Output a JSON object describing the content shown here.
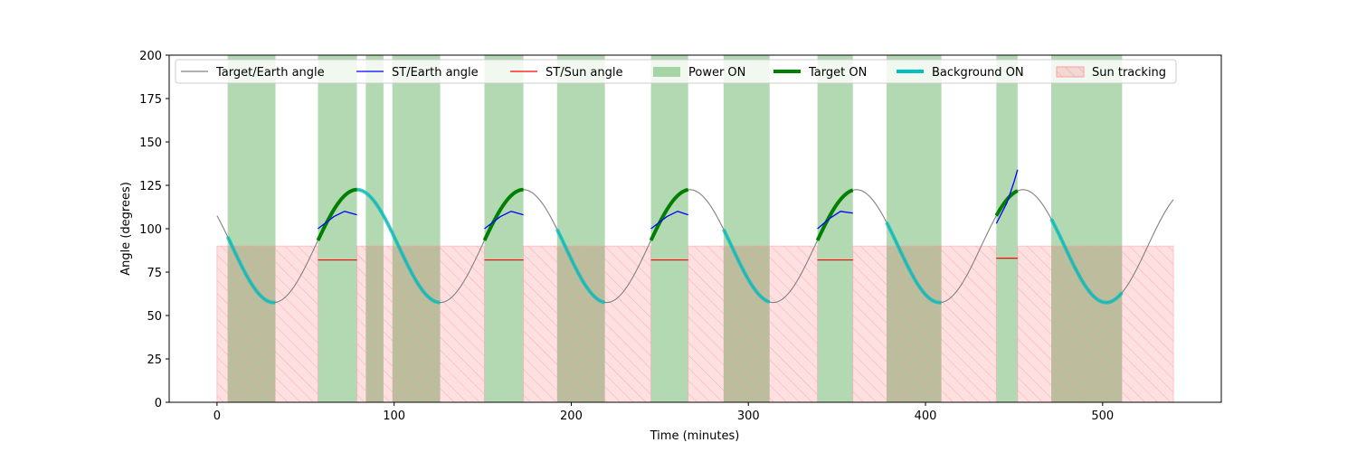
{
  "chart_data": {
    "type": "line",
    "xlabel": "Time (minutes)",
    "ylabel": "Angle (degrees)",
    "xlim": [
      -27,
      567
    ],
    "ylim": [
      0,
      200
    ],
    "xticks": [
      0,
      100,
      200,
      300,
      400,
      500
    ],
    "yticks": [
      0,
      25,
      50,
      75,
      100,
      125,
      150,
      175,
      200
    ],
    "grid": false,
    "legend_position": "top",
    "target_earth_curve": {
      "name": "Target/Earth angle",
      "color": "#808080",
      "x_range": [
        0,
        540
      ],
      "mean": 90,
      "amplitude": 32.5,
      "period_minutes": 94,
      "phase_peak_minute": 79
    },
    "power_on_intervals": [
      [
        6,
        33
      ],
      [
        57,
        79
      ],
      [
        84,
        94
      ],
      [
        99,
        126
      ],
      [
        151,
        173
      ],
      [
        192,
        219
      ],
      [
        245,
        266
      ],
      [
        286,
        312
      ],
      [
        339,
        359
      ],
      [
        378,
        409
      ],
      [
        440,
        452
      ],
      [
        471,
        511
      ]
    ],
    "sun_tracking_intervals": [
      [
        0,
        57
      ],
      [
        79,
        151
      ],
      [
        173,
        245
      ],
      [
        266,
        339
      ],
      [
        359,
        440
      ],
      [
        452,
        540
      ]
    ],
    "sun_tracking_level": 90,
    "target_on_intervals": [
      [
        57,
        79
      ],
      [
        151,
        173
      ],
      [
        245,
        266
      ],
      [
        339,
        359
      ],
      [
        440,
        452
      ]
    ],
    "background_on_intervals": [
      [
        6,
        33
      ],
      [
        79,
        99
      ],
      [
        99,
        126
      ],
      [
        192,
        219
      ],
      [
        286,
        312
      ],
      [
        378,
        409
      ],
      [
        471,
        511
      ]
    ],
    "st_earth_segments": [
      {
        "x": [
          57,
          66,
          72,
          79
        ],
        "y": [
          100,
          107,
          110,
          108
        ]
      },
      {
        "x": [
          151,
          160,
          166,
          173
        ],
        "y": [
          100,
          107,
          110,
          108
        ]
      },
      {
        "x": [
          245,
          254,
          260,
          266
        ],
        "y": [
          100,
          107,
          110,
          108
        ]
      },
      {
        "x": [
          339,
          346,
          352,
          359
        ],
        "y": [
          100,
          106,
          110,
          109
        ]
      },
      {
        "x": [
          440,
          446,
          450,
          452
        ],
        "y": [
          103,
          115,
          127,
          134
        ]
      }
    ],
    "st_sun_segments": [
      {
        "x": [
          57,
          79
        ],
        "y": [
          82,
          82
        ]
      },
      {
        "x": [
          151,
          173
        ],
        "y": [
          82,
          82
        ]
      },
      {
        "x": [
          245,
          266
        ],
        "y": [
          82,
          82
        ]
      },
      {
        "x": [
          339,
          359
        ],
        "y": [
          82,
          82
        ]
      },
      {
        "x": [
          440,
          452
        ],
        "y": [
          83,
          83
        ]
      }
    ],
    "series": [
      {
        "name": "Target/Earth angle",
        "color": "#808080",
        "style": "line"
      },
      {
        "name": "ST/Earth angle",
        "color": "#0000ff",
        "style": "line"
      },
      {
        "name": "ST/Sun angle",
        "color": "#ff0000",
        "style": "line"
      },
      {
        "name": "Power ON",
        "color": "#008000",
        "style": "patch"
      },
      {
        "name": "Target ON",
        "color": "#008000",
        "style": "thick-line"
      },
      {
        "name": "Background ON",
        "color": "#00bfbf",
        "style": "thick-line"
      },
      {
        "name": "Sun tracking",
        "color": "#ff0000",
        "style": "hatched-patch"
      }
    ]
  }
}
